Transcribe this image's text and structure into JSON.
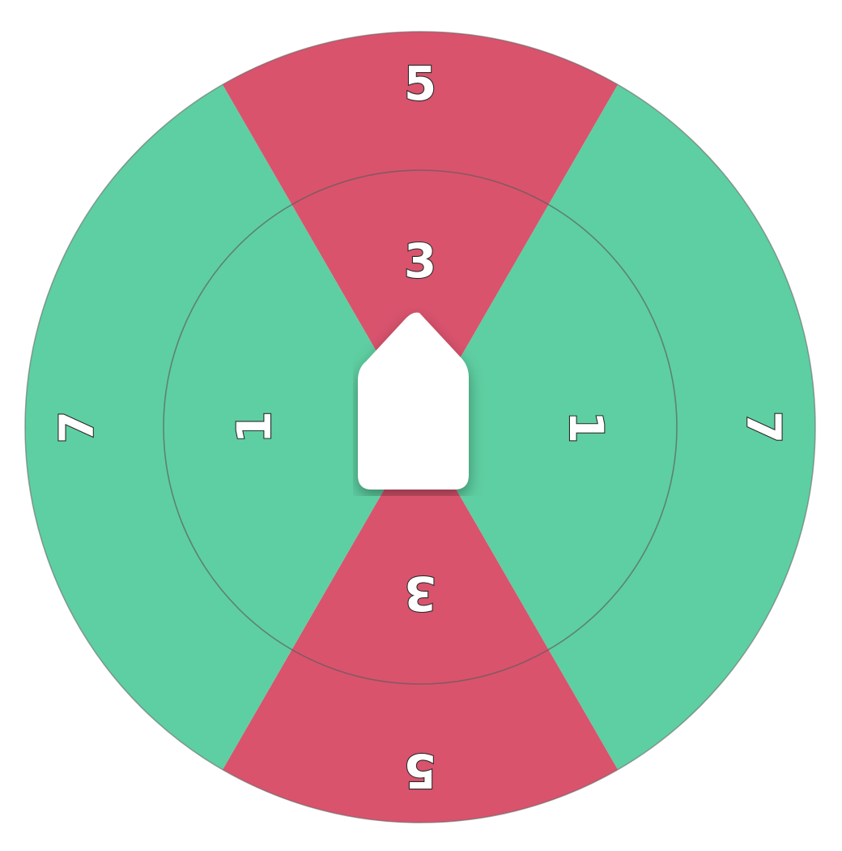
{
  "wheel": {
    "colors": {
      "green": "#5ecfa2",
      "red": "#d9536d",
      "ring_line": "#5a5a5a",
      "edge": "#666666"
    },
    "sectors": [
      {
        "color": "green",
        "outer_value": "7",
        "inner_value": "1"
      },
      {
        "color": "red",
        "outer_value": "5",
        "inner_value": "3"
      },
      {
        "color": "green",
        "outer_value": "7",
        "inner_value": "1"
      },
      {
        "color": "red",
        "outer_value": "5",
        "inner_value": "3"
      }
    ]
  },
  "pointer": {
    "icon": "spinner-pointer-icon",
    "color": "#ffffff"
  }
}
